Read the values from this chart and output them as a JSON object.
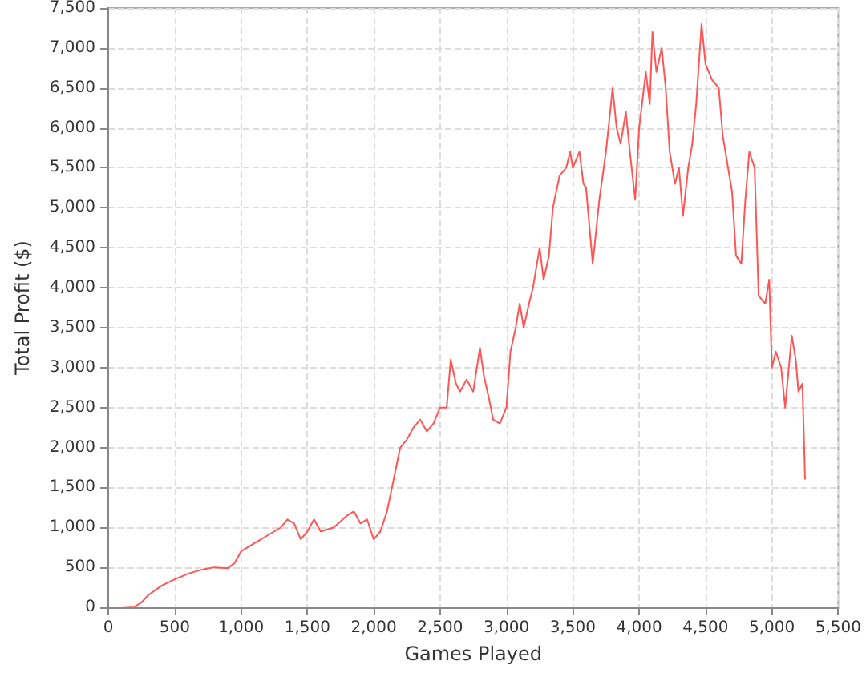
{
  "chart_data": {
    "type": "line",
    "xlabel": "Games Played",
    "ylabel": "Total Profit ($)",
    "x": [
      0,
      100,
      200,
      250,
      300,
      400,
      500,
      600,
      700,
      800,
      900,
      950,
      1000,
      1100,
      1200,
      1300,
      1350,
      1400,
      1450,
      1500,
      1550,
      1600,
      1700,
      1800,
      1850,
      1900,
      1950,
      2000,
      2050,
      2100,
      2150,
      2200,
      2250,
      2300,
      2350,
      2400,
      2450,
      2500,
      2550,
      2580,
      2620,
      2650,
      2700,
      2750,
      2800,
      2830,
      2870,
      2900,
      2950,
      3000,
      3030,
      3070,
      3100,
      3130,
      3170,
      3200,
      3250,
      3280,
      3320,
      3350,
      3400,
      3450,
      3480,
      3500,
      3550,
      3580,
      3600,
      3650,
      3700,
      3750,
      3800,
      3830,
      3860,
      3900,
      3930,
      3970,
      4000,
      4050,
      4080,
      4100,
      4130,
      4170,
      4200,
      4230,
      4270,
      4300,
      4330,
      4370,
      4400,
      4430,
      4470,
      4500,
      4550,
      4600,
      4630,
      4670,
      4700,
      4730,
      4770,
      4800,
      4830,
      4870,
      4900,
      4950,
      4980,
      5000,
      5030,
      5070,
      5100,
      5150,
      5180,
      5200,
      5230,
      5250
    ],
    "series": [
      {
        "color": "#ff5555",
        "values": [
          0,
          0,
          10,
          60,
          150,
          270,
          350,
          420,
          470,
          500,
          490,
          550,
          700,
          800,
          900,
          1000,
          1100,
          1050,
          850,
          950,
          1100,
          950,
          1000,
          1150,
          1200,
          1050,
          1100,
          850,
          950,
          1200,
          1600,
          2000,
          2100,
          2250,
          2350,
          2200,
          2300,
          2500,
          2500,
          3100,
          2800,
          2700,
          2850,
          2700,
          3250,
          2900,
          2600,
          2350,
          2300,
          2500,
          3200,
          3500,
          3800,
          3500,
          3800,
          4000,
          4500,
          4100,
          4400,
          5000,
          5400,
          5500,
          5700,
          5500,
          5700,
          5300,
          5250,
          4300,
          5100,
          5700,
          6500,
          6000,
          5800,
          6200,
          5700,
          5100,
          6000,
          6700,
          6300,
          7200,
          6700,
          7000,
          6500,
          5700,
          5300,
          5500,
          4900,
          5500,
          5800,
          6300,
          7300,
          6800,
          6600,
          6500,
          5900,
          5500,
          5200,
          4400,
          4300,
          5100,
          5700,
          5500,
          3900,
          3800,
          4100,
          3000,
          3200,
          3000,
          2500,
          3400,
          3100,
          2700,
          2800,
          1600
        ]
      }
    ],
    "xlim": [
      0,
      5500
    ],
    "xticks": [
      0,
      500,
      {
        "value": 1000,
        "label": "1,000"
      },
      {
        "value": 1500,
        "label": "1,500"
      },
      {
        "value": 2000,
        "label": "2,000"
      },
      {
        "value": 2500,
        "label": "2,500"
      },
      {
        "value": 3000,
        "label": "3,000"
      },
      {
        "value": 3500,
        "label": "3,500"
      },
      {
        "value": 4000,
        "label": "4,000"
      },
      {
        "value": 4500,
        "label": "4,500"
      },
      {
        "value": 5000,
        "label": "5,000"
      },
      {
        "value": 5500,
        "label": "5,500"
      }
    ],
    "ylim": [
      0,
      7500
    ],
    "yticks": [
      0,
      500,
      {
        "value": 1000,
        "label": "1,000"
      },
      {
        "value": 1500,
        "label": "1,500"
      },
      {
        "value": 2000,
        "label": "2,000"
      },
      {
        "value": 2500,
        "label": "2,500"
      },
      {
        "value": 3000,
        "label": "3,000"
      },
      {
        "value": 3500,
        "label": "3,500"
      },
      {
        "value": 4000,
        "label": "4,000"
      },
      {
        "value": 4500,
        "label": "4,500"
      },
      {
        "value": 5000,
        "label": "5,000"
      },
      {
        "value": 5500,
        "label": "5,500"
      },
      {
        "value": 6000,
        "label": "6,000"
      },
      {
        "value": 6500,
        "label": "6,500"
      },
      {
        "value": 7000,
        "label": "7,000"
      },
      {
        "value": 7500,
        "label": "7,500"
      }
    ],
    "grid": true,
    "marker": "none",
    "line_style": "solid"
  }
}
